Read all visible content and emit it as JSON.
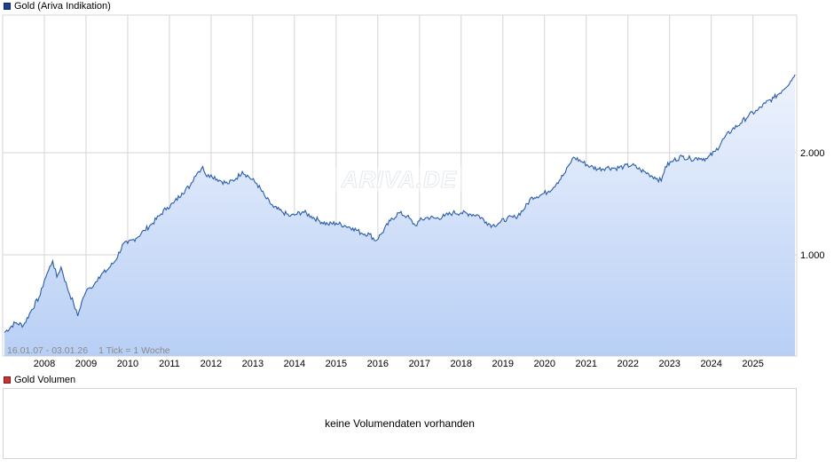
{
  "legend": {
    "main_label": "Gold (Ariva Indikation)",
    "volume_label": "Gold Volumen"
  },
  "info": {
    "range_text": "16.01.07 - 03.01.26",
    "tick_text": "1 Tick = 1 Woche"
  },
  "watermark": "ARIVA.DE",
  "volume_panel": {
    "message": "keine Volumendaten vorhanden"
  },
  "colors": {
    "line": "#2a5caa",
    "fill_top": "#eef3fd",
    "fill_bottom": "#b8cff5",
    "main_swatch": "#1f3f8f",
    "volume_swatch": "#cc3333",
    "grid": "#d4d4d4"
  },
  "chart_data": {
    "type": "area",
    "y_scale": "log",
    "y_ticks": [
      1000,
      2000
    ],
    "y_tick_labels": [
      "1.000",
      "2.000"
    ],
    "x_tick_labels": [
      "2008",
      "2009",
      "2010",
      "2011",
      "2012",
      "2013",
      "2014",
      "2015",
      "2016",
      "2017",
      "2018",
      "2019",
      "2020",
      "2021",
      "2022",
      "2023",
      "2024",
      "2025"
    ],
    "ylim": [
      500,
      3500
    ],
    "series": [
      {
        "x": [
          2007.04,
          2007.3,
          2007.5,
          2007.7,
          2007.9,
          2008.0,
          2008.1,
          2008.2,
          2008.3,
          2008.4,
          2008.55,
          2008.7,
          2008.8,
          2008.9,
          2009.0,
          2009.1,
          2009.2,
          2009.3,
          2009.5,
          2009.7,
          2009.9,
          2010.0,
          2010.2,
          2010.4,
          2010.6,
          2010.8,
          2010.95,
          2011.1,
          2011.3,
          2011.5,
          2011.6,
          2011.7,
          2011.8,
          2011.9,
          2012.0,
          2012.2,
          2012.4,
          2012.6,
          2012.75,
          2012.9,
          2013.1,
          2013.3,
          2013.5,
          2013.7,
          2013.9,
          2014.0,
          2014.2,
          2014.4,
          2014.6,
          2014.8,
          2015.0,
          2015.2,
          2015.4,
          2015.6,
          2015.8,
          2015.95,
          2016.1,
          2016.3,
          2016.5,
          2016.7,
          2016.9,
          2017.0,
          2017.2,
          2017.4,
          2017.6,
          2017.8,
          2018.0,
          2018.2,
          2018.4,
          2018.6,
          2018.75,
          2018.9,
          2019.1,
          2019.3,
          2019.5,
          2019.7,
          2019.9,
          2020.1,
          2020.3,
          2020.5,
          2020.6,
          2020.7,
          2020.9,
          2021.1,
          2021.3,
          2021.5,
          2021.7,
          2021.9,
          2022.1,
          2022.3,
          2022.5,
          2022.7,
          2022.8,
          2022.9,
          2023.1,
          2023.3,
          2023.5,
          2023.7,
          2023.9,
          2024.1,
          2024.3,
          2024.5,
          2024.7,
          2024.9,
          2025.1,
          2025.3,
          2025.5,
          2025.7,
          2025.9,
          2026.01
        ],
        "y": [
          590,
          630,
          620,
          690,
          760,
          840,
          900,
          960,
          860,
          920,
          800,
          720,
          660,
          730,
          780,
          800,
          820,
          860,
          900,
          960,
          1080,
          1080,
          1120,
          1180,
          1240,
          1320,
          1380,
          1420,
          1520,
          1600,
          1700,
          1760,
          1820,
          1700,
          1720,
          1660,
          1620,
          1680,
          1760,
          1700,
          1620,
          1480,
          1380,
          1340,
          1300,
          1310,
          1340,
          1300,
          1260,
          1230,
          1240,
          1220,
          1200,
          1160,
          1150,
          1100,
          1160,
          1260,
          1330,
          1300,
          1220,
          1260,
          1290,
          1280,
          1300,
          1330,
          1330,
          1320,
          1310,
          1250,
          1220,
          1240,
          1280,
          1290,
          1360,
          1480,
          1500,
          1540,
          1630,
          1750,
          1850,
          1940,
          1880,
          1820,
          1790,
          1810,
          1800,
          1820,
          1840,
          1780,
          1730,
          1680,
          1650,
          1820,
          1900,
          1950,
          1920,
          1930,
          1920,
          2020,
          2200,
          2340,
          2440,
          2580,
          2660,
          2800,
          2900,
          3050,
          3250,
          3400
        ]
      }
    ]
  }
}
